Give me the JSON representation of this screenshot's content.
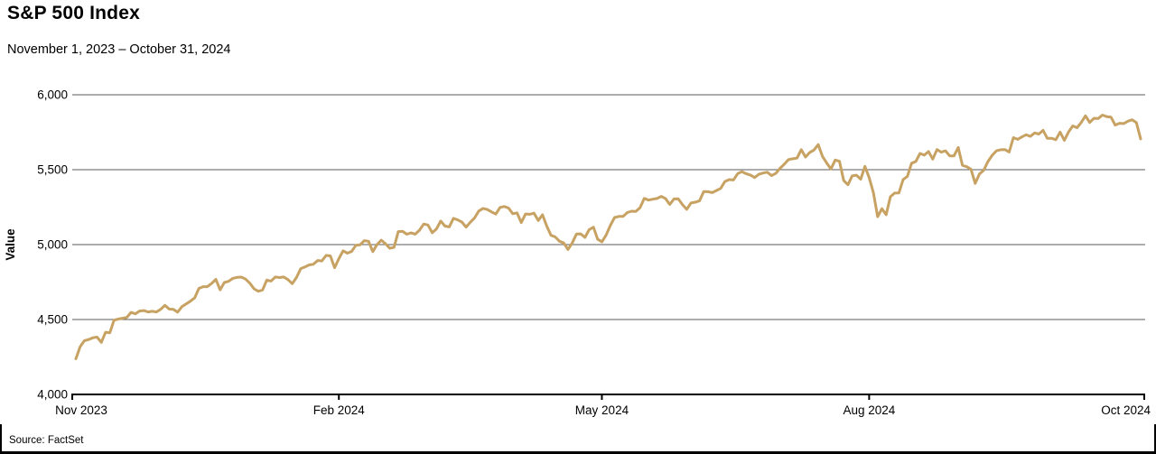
{
  "header": {
    "title": "S&P 500 Index",
    "subtitle": "November 1, 2023 – October 31, 2024"
  },
  "footer": {
    "source": "Source: FactSet"
  },
  "colors": {
    "line": "#C7A262",
    "grid": "#5B5B5B",
    "axis": "#000000",
    "text": "#000000",
    "background": "#FFFFFF"
  },
  "chart_data": {
    "type": "line",
    "title": "S&P 500 Index",
    "subtitle": "November 1, 2023 – October 31, 2024",
    "xlabel": "",
    "ylabel": "Value",
    "ylim": [
      4000,
      6000
    ],
    "yticks": [
      4000,
      4500,
      5000,
      5500,
      6000
    ],
    "ytick_labels": [
      "4,000",
      "4,500",
      "5,000",
      "5,500",
      "6,000"
    ],
    "xtick_labels": [
      "Nov 2023",
      "Feb 2024",
      "May 2024",
      "Aug 2024",
      "Oct 2024"
    ],
    "xtick_indices": [
      0,
      62,
      124,
      187,
      251
    ],
    "grid": "horizontal-only",
    "legend": "none",
    "line_color": "#C7A262",
    "series": [
      {
        "name": "S&P 500 Index",
        "dates": [
          "2023-11-01",
          "2023-11-02",
          "2023-11-03",
          "2023-11-06",
          "2023-11-07",
          "2023-11-08",
          "2023-11-09",
          "2023-11-10",
          "2023-11-13",
          "2023-11-14",
          "2023-11-15",
          "2023-11-16",
          "2023-11-17",
          "2023-11-20",
          "2023-11-21",
          "2023-11-22",
          "2023-11-24",
          "2023-11-27",
          "2023-11-28",
          "2023-11-29",
          "2023-11-30",
          "2023-12-01",
          "2023-12-04",
          "2023-12-05",
          "2023-12-06",
          "2023-12-07",
          "2023-12-08",
          "2023-12-11",
          "2023-12-12",
          "2023-12-13",
          "2023-12-14",
          "2023-12-15",
          "2023-12-18",
          "2023-12-19",
          "2023-12-20",
          "2023-12-21",
          "2023-12-22",
          "2023-12-26",
          "2023-12-27",
          "2023-12-28",
          "2023-12-29",
          "2024-01-02",
          "2024-01-03",
          "2024-01-04",
          "2024-01-05",
          "2024-01-08",
          "2024-01-09",
          "2024-01-10",
          "2024-01-11",
          "2024-01-12",
          "2024-01-16",
          "2024-01-17",
          "2024-01-18",
          "2024-01-19",
          "2024-01-22",
          "2024-01-23",
          "2024-01-24",
          "2024-01-25",
          "2024-01-26",
          "2024-01-29",
          "2024-01-30",
          "2024-01-31",
          "2024-02-01",
          "2024-02-02",
          "2024-02-05",
          "2024-02-06",
          "2024-02-07",
          "2024-02-08",
          "2024-02-09",
          "2024-02-12",
          "2024-02-13",
          "2024-02-14",
          "2024-02-15",
          "2024-02-16",
          "2024-02-20",
          "2024-02-21",
          "2024-02-22",
          "2024-02-23",
          "2024-02-26",
          "2024-02-27",
          "2024-02-28",
          "2024-02-29",
          "2024-03-01",
          "2024-03-04",
          "2024-03-05",
          "2024-03-06",
          "2024-03-07",
          "2024-03-08",
          "2024-03-11",
          "2024-03-12",
          "2024-03-13",
          "2024-03-14",
          "2024-03-15",
          "2024-03-18",
          "2024-03-19",
          "2024-03-20",
          "2024-03-21",
          "2024-03-22",
          "2024-03-25",
          "2024-03-26",
          "2024-03-27",
          "2024-03-28",
          "2024-04-01",
          "2024-04-02",
          "2024-04-03",
          "2024-04-04",
          "2024-04-05",
          "2024-04-08",
          "2024-04-09",
          "2024-04-10",
          "2024-04-11",
          "2024-04-12",
          "2024-04-15",
          "2024-04-16",
          "2024-04-17",
          "2024-04-18",
          "2024-04-19",
          "2024-04-22",
          "2024-04-23",
          "2024-04-24",
          "2024-04-25",
          "2024-04-26",
          "2024-04-29",
          "2024-04-30",
          "2024-05-01",
          "2024-05-02",
          "2024-05-03",
          "2024-05-06",
          "2024-05-07",
          "2024-05-08",
          "2024-05-09",
          "2024-05-10",
          "2024-05-13",
          "2024-05-14",
          "2024-05-15",
          "2024-05-16",
          "2024-05-17",
          "2024-05-20",
          "2024-05-21",
          "2024-05-22",
          "2024-05-23",
          "2024-05-24",
          "2024-05-28",
          "2024-05-29",
          "2024-05-30",
          "2024-05-31",
          "2024-06-03",
          "2024-06-04",
          "2024-06-05",
          "2024-06-06",
          "2024-06-07",
          "2024-06-10",
          "2024-06-11",
          "2024-06-12",
          "2024-06-13",
          "2024-06-14",
          "2024-06-17",
          "2024-06-18",
          "2024-06-20",
          "2024-06-21",
          "2024-06-24",
          "2024-06-25",
          "2024-06-26",
          "2024-06-27",
          "2024-06-28",
          "2024-07-01",
          "2024-07-02",
          "2024-07-03",
          "2024-07-05",
          "2024-07-08",
          "2024-07-09",
          "2024-07-10",
          "2024-07-11",
          "2024-07-12",
          "2024-07-15",
          "2024-07-16",
          "2024-07-17",
          "2024-07-18",
          "2024-07-19",
          "2024-07-22",
          "2024-07-23",
          "2024-07-24",
          "2024-07-25",
          "2024-07-26",
          "2024-07-29",
          "2024-07-30",
          "2024-07-31",
          "2024-08-01",
          "2024-08-02",
          "2024-08-05",
          "2024-08-06",
          "2024-08-07",
          "2024-08-08",
          "2024-08-09",
          "2024-08-12",
          "2024-08-13",
          "2024-08-14",
          "2024-08-15",
          "2024-08-16",
          "2024-08-19",
          "2024-08-20",
          "2024-08-21",
          "2024-08-22",
          "2024-08-23",
          "2024-08-26",
          "2024-08-27",
          "2024-08-28",
          "2024-08-29",
          "2024-08-30",
          "2024-09-03",
          "2024-09-04",
          "2024-09-05",
          "2024-09-06",
          "2024-09-09",
          "2024-09-10",
          "2024-09-11",
          "2024-09-12",
          "2024-09-13",
          "2024-09-16",
          "2024-09-17",
          "2024-09-18",
          "2024-09-19",
          "2024-09-20",
          "2024-09-23",
          "2024-09-24",
          "2024-09-25",
          "2024-09-26",
          "2024-09-27",
          "2024-09-30",
          "2024-10-01",
          "2024-10-02",
          "2024-10-03",
          "2024-10-04",
          "2024-10-07",
          "2024-10-08",
          "2024-10-09",
          "2024-10-10",
          "2024-10-11",
          "2024-10-14",
          "2024-10-15",
          "2024-10-16",
          "2024-10-17",
          "2024-10-18",
          "2024-10-21",
          "2024-10-22",
          "2024-10-23",
          "2024-10-24",
          "2024-10-25",
          "2024-10-28",
          "2024-10-29",
          "2024-10-30",
          "2024-10-31"
        ],
        "values": [
          4237.86,
          4317.78,
          4358.34,
          4365.98,
          4378.38,
          4382.78,
          4347.35,
          4415.24,
          4411.55,
          4495.7,
          4502.88,
          4508.24,
          4514.02,
          4547.38,
          4538.19,
          4556.62,
          4559.34,
          4550.43,
          4554.89,
          4550.58,
          4567.8,
          4594.63,
          4569.78,
          4567.18,
          4549.34,
          4585.59,
          4604.37,
          4622.44,
          4643.7,
          4707.09,
          4719.55,
          4719.19,
          4740.56,
          4768.37,
          4698.35,
          4746.75,
          4754.63,
          4774.75,
          4781.58,
          4783.35,
          4769.83,
          4742.83,
          4704.81,
          4688.68,
          4697.24,
          4763.54,
          4756.5,
          4783.45,
          4780.24,
          4783.83,
          4765.98,
          4739.21,
          4780.94,
          4839.81,
          4850.43,
          4864.6,
          4868.55,
          4894.16,
          4890.97,
          4927.93,
          4924.97,
          4845.65,
          4906.19,
          4958.61,
          4942.81,
          4954.23,
          4995.06,
          4997.91,
          5026.61,
          5021.84,
          4953.17,
          5000.62,
          5029.73,
          5005.57,
          4975.51,
          4981.8,
          5087.03,
          5088.8,
          5069.53,
          5078.18,
          5069.76,
          5096.27,
          5137.08,
          5130.95,
          5078.65,
          5104.76,
          5157.36,
          5123.69,
          5117.94,
          5175.27,
          5165.31,
          5150.48,
          5117.09,
          5149.42,
          5178.51,
          5224.62,
          5241.53,
          5234.18,
          5218.19,
          5203.58,
          5248.49,
          5254.35,
          5243.77,
          5205.81,
          5211.49,
          5147.21,
          5204.34,
          5202.39,
          5209.91,
          5160.64,
          5199.06,
          5123.41,
          5061.82,
          5051.41,
          5022.21,
          5011.12,
          4967.23,
          5010.6,
          5070.55,
          5071.63,
          5048.42,
          5099.96,
          5116.17,
          5035.69,
          5018.39,
          5064.2,
          5127.79,
          5180.74,
          5187.7,
          5187.67,
          5214.08,
          5222.68,
          5221.42,
          5246.68,
          5308.15,
          5297.1,
          5303.27,
          5308.13,
          5321.41,
          5307.01,
          5267.84,
          5304.72,
          5306.04,
          5266.95,
          5235.48,
          5277.51,
          5283.4,
          5291.34,
          5354.03,
          5352.96,
          5346.99,
          5360.79,
          5375.32,
          5421.03,
          5433.74,
          5431.6,
          5473.23,
          5487.03,
          5473.17,
          5464.62,
          5447.87,
          5469.3,
          5477.9,
          5482.87,
          5460.48,
          5475.09,
          5509.01,
          5537.02,
          5567.19,
          5572.85,
          5576.98,
          5633.91,
          5584.54,
          5615.35,
          5631.22,
          5667.2,
          5588.27,
          5544.59,
          5505.0,
          5564.41,
          5555.74,
          5427.13,
          5399.22,
          5459.1,
          5463.54,
          5436.44,
          5522.3,
          5446.68,
          5346.56,
          5186.33,
          5240.03,
          5199.5,
          5319.31,
          5344.16,
          5344.39,
          5434.43,
          5455.21,
          5543.22,
          5554.25,
          5608.25,
          5597.12,
          5620.85,
          5570.64,
          5634.61,
          5616.84,
          5625.8,
          5592.18,
          5591.96,
          5648.4,
          5528.93,
          5520.07,
          5503.41,
          5408.42,
          5471.05,
          5495.52,
          5554.13,
          5595.76,
          5626.02,
          5633.09,
          5634.58,
          5618.26,
          5713.64,
          5702.55,
          5718.57,
          5732.93,
          5722.26,
          5745.37,
          5738.17,
          5762.48,
          5708.75,
          5709.54,
          5699.94,
          5751.07,
          5695.94,
          5751.13,
          5792.04,
          5780.05,
          5815.03,
          5859.85,
          5815.26,
          5842.47,
          5841.47,
          5864.67,
          5853.98,
          5851.2,
          5797.42,
          5809.86,
          5808.12,
          5823.52,
          5832.92,
          5813.67,
          5705.45
        ]
      }
    ]
  }
}
